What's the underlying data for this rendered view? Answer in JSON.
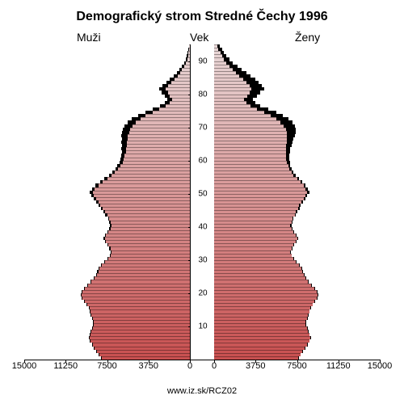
{
  "title": "Demografický strom Stredné Čechy 1996",
  "labels": {
    "men": "Muži",
    "age": "Vek",
    "women": "Ženy"
  },
  "footer_url": "www.iz.sk/RCZ02",
  "chart": {
    "type": "population-pyramid",
    "background_color": "#ffffff",
    "shadow_color": "#000000",
    "gradient_top_color": "#e8d8d8",
    "gradient_bottom_color": "#c85050",
    "title_fontsize": 16,
    "label_fontsize": 14,
    "tick_fontsize": 10,
    "x_max": 15000,
    "x_ticks": [
      0,
      3750,
      7500,
      11250,
      15000
    ],
    "age_ticks": [
      10,
      20,
      30,
      40,
      50,
      60,
      70,
      80,
      90
    ],
    "age_max": 95,
    "bars": [
      {
        "age": 94,
        "m": 50,
        "f": 300,
        "ms": 100,
        "fs": 500
      },
      {
        "age": 93,
        "m": 80,
        "f": 400,
        "ms": 150,
        "fs": 700
      },
      {
        "age": 92,
        "m": 120,
        "f": 550,
        "ms": 200,
        "fs": 900
      },
      {
        "age": 91,
        "m": 180,
        "f": 700,
        "ms": 280,
        "fs": 1100
      },
      {
        "age": 90,
        "m": 250,
        "f": 900,
        "ms": 380,
        "fs": 1400
      },
      {
        "age": 89,
        "m": 350,
        "f": 1100,
        "ms": 500,
        "fs": 1700
      },
      {
        "age": 88,
        "m": 500,
        "f": 1400,
        "ms": 700,
        "fs": 2100
      },
      {
        "age": 87,
        "m": 700,
        "f": 1700,
        "ms": 950,
        "fs": 2500
      },
      {
        "age": 86,
        "m": 900,
        "f": 2000,
        "ms": 1200,
        "fs": 2900
      },
      {
        "age": 85,
        "m": 1100,
        "f": 2300,
        "ms": 1450,
        "fs": 3300
      },
      {
        "age": 84,
        "m": 1400,
        "f": 2600,
        "ms": 1800,
        "fs": 3700
      },
      {
        "age": 83,
        "m": 1700,
        "f": 2900,
        "ms": 2150,
        "fs": 4000
      },
      {
        "age": 82,
        "m": 2000,
        "f": 3200,
        "ms": 2500,
        "fs": 4300
      },
      {
        "age": 81,
        "m": 2200,
        "f": 3400,
        "ms": 2750,
        "fs": 4500
      },
      {
        "age": 80,
        "m": 2000,
        "f": 3200,
        "ms": 2550,
        "fs": 4200
      },
      {
        "age": 79,
        "m": 1800,
        "f": 3000,
        "ms": 2300,
        "fs": 3900
      },
      {
        "age": 78,
        "m": 1600,
        "f": 2700,
        "ms": 2050,
        "fs": 3500
      },
      {
        "age": 77,
        "m": 1800,
        "f": 2900,
        "ms": 2250,
        "fs": 3700
      },
      {
        "age": 76,
        "m": 2200,
        "f": 3300,
        "ms": 2700,
        "fs": 4200
      },
      {
        "age": 75,
        "m": 2800,
        "f": 3900,
        "ms": 3400,
        "fs": 4900
      },
      {
        "age": 74,
        "m": 3400,
        "f": 4500,
        "ms": 4050,
        "fs": 5600
      },
      {
        "age": 73,
        "m": 4000,
        "f": 5100,
        "ms": 4700,
        "fs": 6200
      },
      {
        "age": 72,
        "m": 4500,
        "f": 5600,
        "ms": 5250,
        "fs": 6700
      },
      {
        "age": 71,
        "m": 4900,
        "f": 6000,
        "ms": 5650,
        "fs": 7100
      },
      {
        "age": 70,
        "m": 5200,
        "f": 6300,
        "ms": 5950,
        "fs": 7300
      },
      {
        "age": 69,
        "m": 5400,
        "f": 6500,
        "ms": 6100,
        "fs": 7400
      },
      {
        "age": 68,
        "m": 5500,
        "f": 6600,
        "ms": 6150,
        "fs": 7400
      },
      {
        "age": 67,
        "m": 5600,
        "f": 6600,
        "ms": 6200,
        "fs": 7300
      },
      {
        "age": 66,
        "m": 5600,
        "f": 6600,
        "ms": 6150,
        "fs": 7200
      },
      {
        "age": 65,
        "m": 5700,
        "f": 6600,
        "ms": 6200,
        "fs": 7100
      },
      {
        "age": 64,
        "m": 5700,
        "f": 6500,
        "ms": 6150,
        "fs": 7000
      },
      {
        "age": 63,
        "m": 5800,
        "f": 6500,
        "ms": 6200,
        "fs": 6900
      },
      {
        "age": 62,
        "m": 5800,
        "f": 6500,
        "ms": 6150,
        "fs": 6850
      },
      {
        "age": 61,
        "m": 5900,
        "f": 6500,
        "ms": 6200,
        "fs": 6800
      },
      {
        "age": 60,
        "m": 6000,
        "f": 6500,
        "ms": 6300,
        "fs": 6800
      },
      {
        "age": 59,
        "m": 6100,
        "f": 6600,
        "ms": 6400,
        "fs": 6850
      },
      {
        "age": 58,
        "m": 6300,
        "f": 6700,
        "ms": 6550,
        "fs": 6900
      },
      {
        "age": 57,
        "m": 6500,
        "f": 6800,
        "ms": 6750,
        "fs": 7000
      },
      {
        "age": 56,
        "m": 6800,
        "f": 7000,
        "ms": 7050,
        "fs": 7200
      },
      {
        "age": 55,
        "m": 7100,
        "f": 7200,
        "ms": 7350,
        "fs": 7400
      },
      {
        "age": 54,
        "m": 7500,
        "f": 7500,
        "ms": 7750,
        "fs": 7700
      },
      {
        "age": 53,
        "m": 7900,
        "f": 7800,
        "ms": 8150,
        "fs": 8000
      },
      {
        "age": 52,
        "m": 8300,
        "f": 8100,
        "ms": 8550,
        "fs": 8300
      },
      {
        "age": 51,
        "m": 8600,
        "f": 8300,
        "ms": 8850,
        "fs": 8500
      },
      {
        "age": 50,
        "m": 8800,
        "f": 8400,
        "ms": 9050,
        "fs": 8600
      },
      {
        "age": 49,
        "m": 8700,
        "f": 8300,
        "ms": 8900,
        "fs": 8450
      },
      {
        "age": 48,
        "m": 8500,
        "f": 8100,
        "ms": 8700,
        "fs": 8250
      },
      {
        "age": 47,
        "m": 8300,
        "f": 7900,
        "ms": 8500,
        "fs": 8050
      },
      {
        "age": 46,
        "m": 8100,
        "f": 7700,
        "ms": 8300,
        "fs": 7850
      },
      {
        "age": 45,
        "m": 7900,
        "f": 7600,
        "ms": 8050,
        "fs": 7720
      },
      {
        "age": 44,
        "m": 7700,
        "f": 7400,
        "ms": 7850,
        "fs": 7520
      },
      {
        "age": 43,
        "m": 7500,
        "f": 7300,
        "ms": 7650,
        "fs": 7420
      },
      {
        "age": 42,
        "m": 7300,
        "f": 7100,
        "ms": 7420,
        "fs": 7200
      },
      {
        "age": 41,
        "m": 7200,
        "f": 7000,
        "ms": 7320,
        "fs": 7100
      },
      {
        "age": 40,
        "m": 7100,
        "f": 6900,
        "ms": 7220,
        "fs": 7000
      },
      {
        "age": 39,
        "m": 7200,
        "f": 7000,
        "ms": 7300,
        "fs": 7080
      },
      {
        "age": 38,
        "m": 7400,
        "f": 7200,
        "ms": 7500,
        "fs": 7280
      },
      {
        "age": 37,
        "m": 7600,
        "f": 7400,
        "ms": 7700,
        "fs": 7480
      },
      {
        "age": 36,
        "m": 7700,
        "f": 7500,
        "ms": 7800,
        "fs": 7580
      },
      {
        "age": 35,
        "m": 7600,
        "f": 7400,
        "ms": 7700,
        "fs": 7480
      },
      {
        "age": 34,
        "m": 7400,
        "f": 7200,
        "ms": 7500,
        "fs": 7280
      },
      {
        "age": 33,
        "m": 7200,
        "f": 7000,
        "ms": 7300,
        "fs": 7080
      },
      {
        "age": 32,
        "m": 7100,
        "f": 6900,
        "ms": 7200,
        "fs": 6980
      },
      {
        "age": 31,
        "m": 7200,
        "f": 7000,
        "ms": 7280,
        "fs": 7060
      },
      {
        "age": 30,
        "m": 7400,
        "f": 7200,
        "ms": 7480,
        "fs": 7260
      },
      {
        "age": 29,
        "m": 7700,
        "f": 7400,
        "ms": 7780,
        "fs": 7460
      },
      {
        "age": 28,
        "m": 8000,
        "f": 7700,
        "ms": 8080,
        "fs": 7760
      },
      {
        "age": 27,
        "m": 8200,
        "f": 7900,
        "ms": 8280,
        "fs": 7960
      },
      {
        "age": 26,
        "m": 8300,
        "f": 8000,
        "ms": 8380,
        "fs": 8060
      },
      {
        "age": 25,
        "m": 8400,
        "f": 8100,
        "ms": 8480,
        "fs": 8160
      },
      {
        "age": 24,
        "m": 8600,
        "f": 8300,
        "ms": 8680,
        "fs": 8360
      },
      {
        "age": 23,
        "m": 8900,
        "f": 8500,
        "ms": 8980,
        "fs": 8560
      },
      {
        "age": 22,
        "m": 9200,
        "f": 8800,
        "ms": 9280,
        "fs": 8860
      },
      {
        "age": 21,
        "m": 9500,
        "f": 9100,
        "ms": 9580,
        "fs": 9160
      },
      {
        "age": 20,
        "m": 9700,
        "f": 9300,
        "ms": 9780,
        "fs": 9360
      },
      {
        "age": 19,
        "m": 9800,
        "f": 9400,
        "ms": 9880,
        "fs": 9460
      },
      {
        "age": 18,
        "m": 9700,
        "f": 9300,
        "ms": 9780,
        "fs": 9360
      },
      {
        "age": 17,
        "m": 9500,
        "f": 9100,
        "ms": 9580,
        "fs": 9160
      },
      {
        "age": 16,
        "m": 9300,
        "f": 8900,
        "ms": 9380,
        "fs": 8960
      },
      {
        "age": 15,
        "m": 9100,
        "f": 8700,
        "ms": 9180,
        "fs": 8760
      },
      {
        "age": 14,
        "m": 9000,
        "f": 8600,
        "ms": 9080,
        "fs": 8660
      },
      {
        "age": 13,
        "m": 8900,
        "f": 8500,
        "ms": 8980,
        "fs": 8560
      },
      {
        "age": 12,
        "m": 8800,
        "f": 8400,
        "ms": 8880,
        "fs": 8460
      },
      {
        "age": 11,
        "m": 8700,
        "f": 8300,
        "ms": 8780,
        "fs": 8360
      },
      {
        "age": 10,
        "m": 8700,
        "f": 8300,
        "ms": 8780,
        "fs": 8360
      },
      {
        "age": 9,
        "m": 8800,
        "f": 8400,
        "ms": 8880,
        "fs": 8460
      },
      {
        "age": 8,
        "m": 8900,
        "f": 8500,
        "ms": 8980,
        "fs": 8560
      },
      {
        "age": 7,
        "m": 9000,
        "f": 8600,
        "ms": 9080,
        "fs": 8660
      },
      {
        "age": 6,
        "m": 9100,
        "f": 8700,
        "ms": 9180,
        "fs": 8760
      },
      {
        "age": 5,
        "m": 9000,
        "f": 8600,
        "ms": 9080,
        "fs": 8660
      },
      {
        "age": 4,
        "m": 8800,
        "f": 8400,
        "ms": 8880,
        "fs": 8460
      },
      {
        "age": 3,
        "m": 8600,
        "f": 8200,
        "ms": 8680,
        "fs": 8260
      },
      {
        "age": 2,
        "m": 8400,
        "f": 8000,
        "ms": 8480,
        "fs": 8060
      },
      {
        "age": 1,
        "m": 8200,
        "f": 7800,
        "ms": 8280,
        "fs": 7860
      },
      {
        "age": 0,
        "m": 8000,
        "f": 7600,
        "ms": 8080,
        "fs": 7660
      }
    ]
  }
}
